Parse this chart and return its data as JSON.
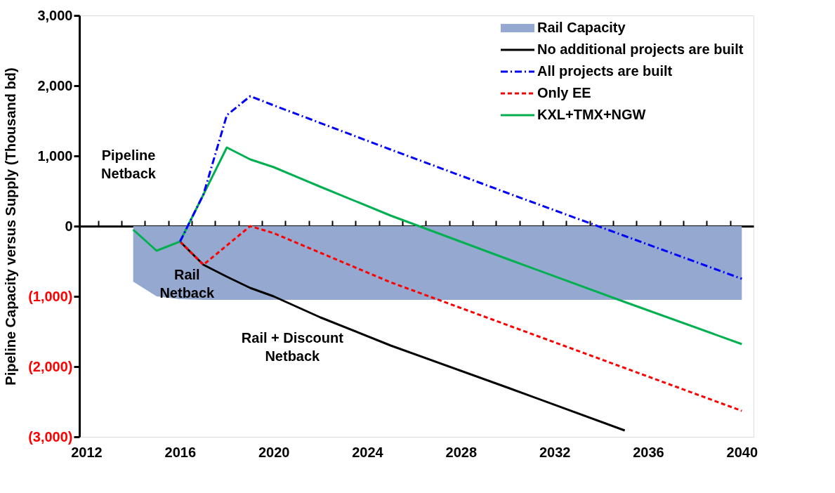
{
  "chart_data": {
    "type": "line",
    "ylabel": "Pipeline Capacity versus Supply (Thousand bd)",
    "xlim": [
      2011.7,
      2040.5
    ],
    "xticks": [
      2012,
      2016,
      2020,
      2024,
      2028,
      2032,
      2036,
      2040
    ],
    "ylim": [
      -3000,
      3000
    ],
    "yticks": [
      {
        "value": -3000,
        "label": "(3,000)"
      },
      {
        "value": -2000,
        "label": "(2,000)"
      },
      {
        "value": -1000,
        "label": "(1,000)"
      },
      0,
      {
        "value": 1000,
        "label": "1,000"
      },
      {
        "value": 2000,
        "label": "2,000"
      },
      {
        "value": 3000,
        "label": "3,000"
      }
    ],
    "legend": "top right",
    "annotations": [
      "Pipeline Netback",
      "Rail Netback",
      "Rail + Discount Netback"
    ],
    "series": [
      {
        "name": "Rail Capacity",
        "type": "area",
        "color": "#95a9d0",
        "x": [
          2014,
          2015,
          2016,
          2017,
          2020,
          2025,
          2030,
          2035,
          2040
        ],
        "values": [
          -790,
          -1000,
          -1040,
          -1050,
          -1050,
          -1050,
          -1050,
          -1050,
          -1050
        ]
      },
      {
        "name": "No additional projects are built",
        "color": "#000000",
        "line_style": "solid",
        "x": [
          2016,
          2017,
          2018,
          2019,
          2020,
          2022,
          2025,
          2030,
          2035
        ],
        "values": [
          -220,
          -550,
          -720,
          -880,
          -1000,
          -1300,
          -1700,
          -2300,
          -2910
        ]
      },
      {
        "name": "All projects are built",
        "color": "#0000ff",
        "line_style": "dashdot",
        "x": [
          2016,
          2017,
          2018,
          2019,
          2020,
          2025,
          2030,
          2035,
          2040
        ],
        "values": [
          -220,
          450,
          1580,
          1850,
          1720,
          1090,
          470,
          -140,
          -750
        ]
      },
      {
        "name": "Only EE",
        "color": "#ff0000",
        "line_style": "dashed",
        "x": [
          2016,
          2017,
          2019,
          2020,
          2022,
          2025,
          2030,
          2035,
          2040
        ],
        "values": [
          -220,
          -550,
          0,
          -100,
          -380,
          -800,
          -1410,
          -2020,
          -2630
        ]
      },
      {
        "name": "KXL+TMX+NGW",
        "color": "#00b050",
        "line_style": "solid",
        "x": [
          2014,
          2015,
          2016,
          2017,
          2018,
          2019,
          2020,
          2022,
          2025,
          2030,
          2035,
          2040
        ],
        "values": [
          -50,
          -350,
          -220,
          450,
          1120,
          950,
          840,
          560,
          150,
          -470,
          -1080,
          -1680
        ]
      }
    ]
  }
}
